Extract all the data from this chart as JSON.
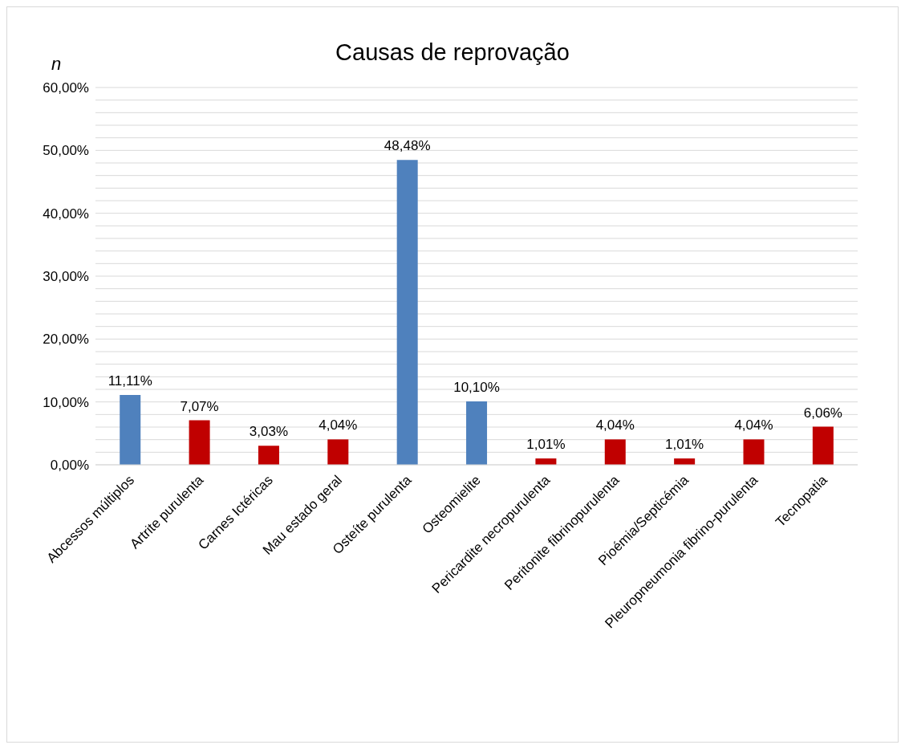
{
  "chart_data": {
    "type": "bar",
    "title": "Causas de reprovação",
    "ylabel": "n",
    "categories": [
      "Abcessos múltiplos",
      "Artrite purulenta",
      "Carnes Ictéricas",
      "Mau estado geral",
      "Osteíte purulenta",
      "Osteomielite",
      "Pericardite necropurulenta",
      "Peritonite fibrinopurulenta",
      "Pioémia/Septicémia",
      "Pleuropneumonia fibrino-purulenta",
      "Tecnopatia"
    ],
    "values": [
      11.11,
      7.07,
      3.03,
      4.04,
      48.48,
      10.1,
      1.01,
      4.04,
      1.01,
      4.04,
      6.06
    ],
    "colors": [
      "#4f81bd",
      "#c00000",
      "#c00000",
      "#c00000",
      "#4f81bd",
      "#4f81bd",
      "#c00000",
      "#c00000",
      "#c00000",
      "#c00000",
      "#c00000"
    ],
    "value_labels": [
      "11,11%",
      "7,07%",
      "3,03%",
      "4,04%",
      "48,48%",
      "10,10%",
      "1,01%",
      "4,04%",
      "1,01%",
      "4,04%",
      "6,06%"
    ],
    "ylim": [
      0,
      60
    ],
    "yticks": [
      {
        "value": 0,
        "label": "0,00%"
      },
      {
        "value": 2,
        "label": null
      },
      {
        "value": 4,
        "label": null
      },
      {
        "value": 6,
        "label": null
      },
      {
        "value": 8,
        "label": null
      },
      {
        "value": 10,
        "label": "10,00%"
      },
      {
        "value": 12,
        "label": null
      },
      {
        "value": 14,
        "label": null
      },
      {
        "value": 16,
        "label": null
      },
      {
        "value": 18,
        "label": null
      },
      {
        "value": 20,
        "label": "20,00%"
      },
      {
        "value": 22,
        "label": null
      },
      {
        "value": 24,
        "label": null
      },
      {
        "value": 26,
        "label": null
      },
      {
        "value": 28,
        "label": null
      },
      {
        "value": 30,
        "label": "30,00%"
      },
      {
        "value": 32,
        "label": null
      },
      {
        "value": 34,
        "label": null
      },
      {
        "value": 36,
        "label": null
      },
      {
        "value": 38,
        "label": null
      },
      {
        "value": 40,
        "label": "40,00%"
      },
      {
        "value": 42,
        "label": null
      },
      {
        "value": 44,
        "label": null
      },
      {
        "value": 46,
        "label": null
      },
      {
        "value": 48,
        "label": null
      },
      {
        "value": 50,
        "label": "50,00%"
      },
      {
        "value": 52,
        "label": null
      },
      {
        "value": 54,
        "label": null
      },
      {
        "value": 56,
        "label": null
      },
      {
        "value": 58,
        "label": null
      },
      {
        "value": 60,
        "label": "60,00%"
      }
    ],
    "grid": "y",
    "legend": false
  }
}
